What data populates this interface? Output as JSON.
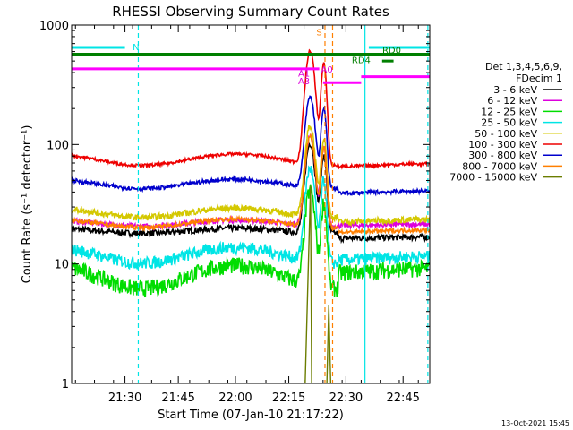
{
  "chart_data": {
    "type": "line",
    "title": "RHESSI Observing Summary Count Rates",
    "xlabel": "Start Time (07-Jan-10 21:17:22)",
    "ylabel": "Count Rate (s⁻¹ detector⁻¹)",
    "yscale": "log",
    "ylim": [
      1,
      1000
    ],
    "xlim_min": [
      0,
      94
    ],
    "x_ticks": [
      {
        "min": 14,
        "label": "21:30"
      },
      {
        "min": 28,
        "label": "21:45"
      },
      {
        "min": 43,
        "label": "22:00"
      },
      {
        "min": 57,
        "label": "22:15"
      },
      {
        "min": 72,
        "label": "22:30"
      },
      {
        "min": 87,
        "label": "22:45"
      }
    ],
    "y_ticks": [
      {
        "value": 1,
        "label": "1"
      },
      {
        "value": 10,
        "label": "10"
      },
      {
        "value": 100,
        "label": "100"
      },
      {
        "value": 1000,
        "label": "1000"
      }
    ],
    "legend_header": [
      "Det 1,3,4,5,6,9,",
      "FDecim 1"
    ],
    "legend_position": "right",
    "series": [
      {
        "name": "3 - 6 keV",
        "color": "#000000",
        "base": 19,
        "amp": 0.05,
        "noise": 0.06,
        "decay": 16
      },
      {
        "name": "6 - 12 keV",
        "color": "#dd00dd",
        "base": 22,
        "amp": 0.06,
        "noise": 0.05,
        "decay": 21
      },
      {
        "name": "12 - 25 keV",
        "color": "#00dd00",
        "base": 8,
        "amp": 0.22,
        "noise": 0.16,
        "decay": 9
      },
      {
        "name": "25 - 50 keV",
        "color": "#00e5e5",
        "base": 12,
        "amp": 0.15,
        "noise": 0.12,
        "decay": 11
      },
      {
        "name": "50 - 100 keV",
        "color": "#d4c800",
        "base": 27,
        "amp": 0.09,
        "noise": 0.06,
        "decay": 22
      },
      {
        "name": "100 - 300 keV",
        "color": "#ee0000",
        "base": 75,
        "amp": 0.11,
        "noise": 0.03,
        "decay": 65
      },
      {
        "name": "300 - 800 keV",
        "color": "#0000cc",
        "base": 47,
        "amp": 0.09,
        "noise": 0.04,
        "decay": 38
      },
      {
        "name": "800 - 7000 keV",
        "color": "#ff7f00",
        "base": 22,
        "amp": 0.08,
        "noise": 0.04,
        "decay": 18
      },
      {
        "name": "7000 - 15000 keV",
        "color": "#6b7d00",
        "base": 0,
        "amp": 0,
        "noise": 0,
        "decay": 0
      }
    ],
    "flags": [
      {
        "label": "N",
        "color": "#00e5e5",
        "value": 650,
        "x_start": 0,
        "x_end": 14,
        "label_at": 16
      },
      {
        "label": "N",
        "color": "#00e5e5",
        "value": 650,
        "x_start": 78,
        "x_end": 94,
        "label_at": -1
      },
      {
        "label": "",
        "color": "#007f00",
        "value": 570,
        "x_start": 0,
        "x_end": 94,
        "label_at": -1
      },
      {
        "label": "",
        "color": "#ff00ff",
        "value": 430,
        "x_start": 0,
        "x_end": 65,
        "label_at": -1
      },
      {
        "label": "",
        "color": "#ff00ff",
        "value": 330,
        "x_start": 66,
        "x_end": 76,
        "label_at": -1
      },
      {
        "label": "",
        "color": "#ff00ff",
        "value": 370,
        "x_start": 76,
        "x_end": 94,
        "label_at": -1
      }
    ],
    "flag_labels": [
      {
        "text": "S",
        "color": "#ff7f00",
        "x": 65,
        "value": 820
      },
      {
        "text": "RD0",
        "color": "#007f00",
        "x": 84,
        "value": 580
      },
      {
        "text": "RD4",
        "color": "#007f00",
        "x": 76,
        "value": 480
      },
      {
        "text": "A1",
        "color": "#dd00dd",
        "x": 61,
        "value": 370
      },
      {
        "text": "A3",
        "color": "#dd00dd",
        "x": 61,
        "value": 320
      },
      {
        "text": "A0",
        "color": "#dd00dd",
        "x": 67,
        "value": 400
      }
    ],
    "vlines": [
      {
        "x": 17.5,
        "color": "#00e5e5",
        "dashed": true
      },
      {
        "x": 77,
        "color": "#00e5e5",
        "dashed": false
      },
      {
        "x": 93.5,
        "color": "#00e5e5",
        "dashed": true
      },
      {
        "x": 66.5,
        "color": "#ff7f00",
        "dashed": true
      },
      {
        "x": 68.5,
        "color": "#ff7f00",
        "dashed": true
      }
    ],
    "timestamp": "13-Oct-2021 15:45"
  }
}
